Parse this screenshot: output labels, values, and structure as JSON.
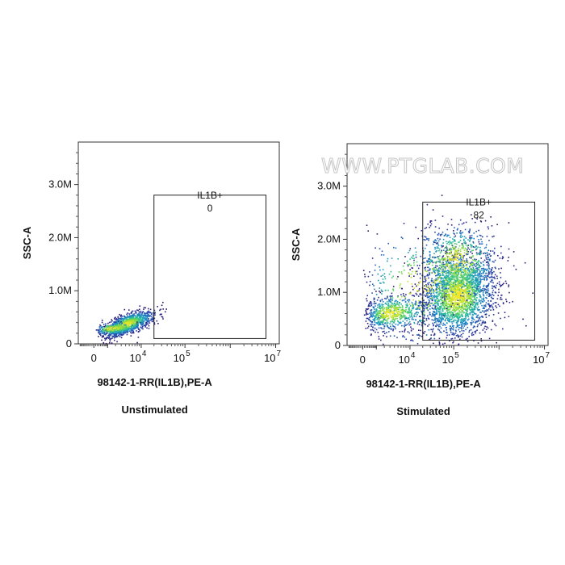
{
  "watermark": "WWW.PTGLAB.COM",
  "chart_data": [
    {
      "type": "scatter",
      "title": "Unstimulated",
      "xlabel": "98142-1-RR(IL1B),PE-A",
      "ylabel": "SSC-A",
      "x_scale": "biexponential",
      "x_ticks": [
        {
          "value": 0,
          "label": "0"
        },
        {
          "value": 10000,
          "label": "10",
          "exp": "4"
        },
        {
          "value": 100000,
          "label": "10",
          "exp": "5"
        },
        {
          "value": 10000000,
          "label": "10",
          "exp": "7"
        }
      ],
      "ylim": [
        0,
        3800000
      ],
      "y_ticks": [
        {
          "value": 0,
          "label": "0"
        },
        {
          "value": 1000000,
          "label": "1.0M"
        },
        {
          "value": 2000000,
          "label": "2.0M"
        },
        {
          "value": 3000000,
          "label": "3.0M"
        }
      ],
      "gate": {
        "label": "IL1B+",
        "value": "0",
        "x_min": 20000,
        "x_max": 10000000,
        "y_min": 100000,
        "y_max": 2800000
      },
      "populations": [
        {
          "x_center": 4000,
          "y_center": 380000,
          "x_spread": 0.35,
          "y_spread": 90000,
          "n": 1100,
          "tilt": 0.9
        },
        {
          "x_center": 1500,
          "y_center": 300000,
          "x_spread": 0.45,
          "y_spread": 60000,
          "n": 220,
          "tilt": 0.3
        }
      ]
    },
    {
      "type": "scatter",
      "title": "Stimulated",
      "xlabel": "98142-1-RR(IL1B),PE-A",
      "ylabel": "SSC-A",
      "x_scale": "biexponential",
      "x_ticks": [
        {
          "value": 0,
          "label": "0"
        },
        {
          "value": 10000,
          "label": "10",
          "exp": "4"
        },
        {
          "value": 100000,
          "label": "10",
          "exp": "5"
        },
        {
          "value": 10000000,
          "label": "10",
          "exp": "7"
        }
      ],
      "ylim": [
        0,
        3800000
      ],
      "y_ticks": [
        {
          "value": 0,
          "label": "0"
        },
        {
          "value": 1000000,
          "label": "1.0M"
        },
        {
          "value": 2000000,
          "label": "2.0M"
        },
        {
          "value": 3000000,
          "label": "3.0M"
        }
      ],
      "gate": {
        "label": "IL1B+",
        "value": "82",
        "x_min": 20000,
        "x_max": 10000000,
        "y_min": 100000,
        "y_max": 2700000
      },
      "populations": [
        {
          "x_center": 120000,
          "y_center": 950000,
          "x_spread": 0.4,
          "y_spread": 380000,
          "n": 2300,
          "tilt": 0.1
        },
        {
          "x_center": 120000,
          "y_center": 1600000,
          "x_spread": 0.45,
          "y_spread": 350000,
          "n": 700,
          "tilt": 0.0
        },
        {
          "x_center": 3000,
          "y_center": 620000,
          "x_spread": 0.5,
          "y_spread": 160000,
          "n": 650,
          "tilt": 0.2
        },
        {
          "x_center": 20000,
          "y_center": 1100000,
          "x_spread": 0.9,
          "y_spread": 550000,
          "n": 450,
          "tilt": 0.0
        }
      ]
    }
  ]
}
